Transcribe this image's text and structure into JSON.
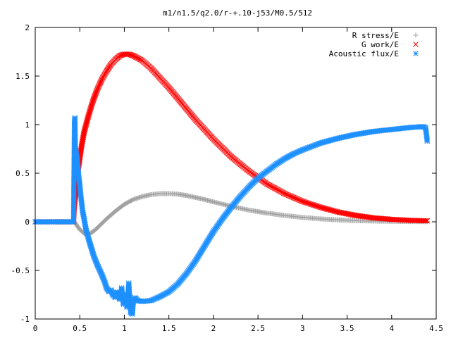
{
  "chart_data": {
    "type": "scatter",
    "title": "m1/n1.5/q2.0/r-+.10-j53/M0.5/512",
    "xlabel": "",
    "ylabel": "",
    "xlim": [
      0,
      4.5
    ],
    "ylim": [
      -1,
      2
    ],
    "xticks": [
      "0",
      "0.5",
      "1",
      "1.5",
      "2",
      "2.5",
      "3",
      "3.5",
      "4",
      "4.5"
    ],
    "yticks": [
      "-1",
      "-0.5",
      "0",
      "0.5",
      "1",
      "1.5",
      "2"
    ],
    "legend_position": "top-right",
    "grid": false,
    "series": [
      {
        "name": "R stress/E",
        "marker": "plus",
        "color": "#a0a0a0",
        "points": [
          [
            0.0,
            0.0
          ],
          [
            0.1,
            0.0
          ],
          [
            0.2,
            0.0
          ],
          [
            0.3,
            0.0
          ],
          [
            0.44,
            0.0
          ],
          [
            0.5,
            -0.08
          ],
          [
            0.55,
            -0.12
          ],
          [
            0.6,
            -0.13
          ],
          [
            0.65,
            -0.1
          ],
          [
            0.7,
            -0.06
          ],
          [
            0.8,
            0.03
          ],
          [
            0.9,
            0.11
          ],
          [
            1.0,
            0.18
          ],
          [
            1.1,
            0.23
          ],
          [
            1.2,
            0.26
          ],
          [
            1.3,
            0.28
          ],
          [
            1.4,
            0.29
          ],
          [
            1.5,
            0.29
          ],
          [
            1.6,
            0.285
          ],
          [
            1.7,
            0.27
          ],
          [
            1.8,
            0.25
          ],
          [
            1.9,
            0.23
          ],
          [
            2.0,
            0.205
          ],
          [
            2.2,
            0.16
          ],
          [
            2.4,
            0.12
          ],
          [
            2.6,
            0.09
          ],
          [
            2.8,
            0.065
          ],
          [
            3.0,
            0.045
          ],
          [
            3.2,
            0.03
          ],
          [
            3.4,
            0.02
          ],
          [
            3.6,
            0.012
          ],
          [
            3.8,
            0.008
          ],
          [
            4.0,
            0.005
          ],
          [
            4.2,
            0.003
          ],
          [
            4.4,
            0.002
          ]
        ]
      },
      {
        "name": "G work/E",
        "marker": "cross",
        "color": "#ff0000",
        "points": [
          [
            0.0,
            0.0
          ],
          [
            0.2,
            0.0
          ],
          [
            0.43,
            0.0
          ],
          [
            0.44,
            0.17
          ],
          [
            0.45,
            0.25
          ],
          [
            0.46,
            0.34
          ],
          [
            0.47,
            0.42
          ],
          [
            0.48,
            0.52
          ],
          [
            0.5,
            0.65
          ],
          [
            0.52,
            0.78
          ],
          [
            0.55,
            0.93
          ],
          [
            0.6,
            1.1
          ],
          [
            0.65,
            1.25
          ],
          [
            0.7,
            1.37
          ],
          [
            0.75,
            1.47
          ],
          [
            0.8,
            1.55
          ],
          [
            0.85,
            1.62
          ],
          [
            0.9,
            1.67
          ],
          [
            0.95,
            1.71
          ],
          [
            1.0,
            1.725
          ],
          [
            1.05,
            1.725
          ],
          [
            1.1,
            1.71
          ],
          [
            1.2,
            1.66
          ],
          [
            1.3,
            1.58
          ],
          [
            1.4,
            1.48
          ],
          [
            1.5,
            1.38
          ],
          [
            1.6,
            1.27
          ],
          [
            1.7,
            1.16
          ],
          [
            1.8,
            1.05
          ],
          [
            1.9,
            0.95
          ],
          [
            2.0,
            0.85
          ],
          [
            2.2,
            0.67
          ],
          [
            2.4,
            0.52
          ],
          [
            2.6,
            0.39
          ],
          [
            2.8,
            0.29
          ],
          [
            3.0,
            0.21
          ],
          [
            3.2,
            0.15
          ],
          [
            3.4,
            0.1
          ],
          [
            3.6,
            0.065
          ],
          [
            3.8,
            0.04
          ],
          [
            4.0,
            0.025
          ],
          [
            4.2,
            0.015
          ],
          [
            4.4,
            0.01
          ]
        ]
      },
      {
        "name": "Acoustic flux/E",
        "marker": "star",
        "color": "#1e90ff",
        "points": [
          [
            0.0,
            0.0
          ],
          [
            0.1,
            0.0
          ],
          [
            0.2,
            0.0
          ],
          [
            0.3,
            0.0
          ],
          [
            0.43,
            0.0
          ],
          [
            0.44,
            1.01
          ],
          [
            0.445,
            1.07
          ],
          [
            0.45,
            0.76
          ],
          [
            0.46,
            0.7
          ],
          [
            0.47,
            0.65
          ],
          [
            0.48,
            0.55
          ],
          [
            0.49,
            0.45
          ],
          [
            0.5,
            0.38
          ],
          [
            0.51,
            0.28
          ],
          [
            0.52,
            0.2
          ],
          [
            0.53,
            0.12
          ],
          [
            0.55,
            0.02
          ],
          [
            0.57,
            -0.08
          ],
          [
            0.6,
            -0.18
          ],
          [
            0.63,
            -0.27
          ],
          [
            0.66,
            -0.36
          ],
          [
            0.7,
            -0.45
          ],
          [
            0.75,
            -0.55
          ],
          [
            0.78,
            -0.62
          ],
          [
            0.8,
            -0.68
          ],
          [
            0.83,
            -0.72
          ],
          [
            0.85,
            -0.7
          ],
          [
            0.87,
            -0.75
          ],
          [
            0.9,
            -0.78
          ],
          [
            0.92,
            -0.72
          ],
          [
            0.95,
            -0.8
          ],
          [
            0.97,
            -0.68
          ],
          [
            0.99,
            -0.85
          ],
          [
            1.01,
            -0.75
          ],
          [
            1.03,
            -0.88
          ],
          [
            1.05,
            -0.63
          ],
          [
            1.07,
            -0.93
          ],
          [
            1.09,
            -0.95
          ],
          [
            1.1,
            -0.83
          ],
          [
            1.12,
            -0.78
          ],
          [
            1.15,
            -0.81
          ],
          [
            1.2,
            -0.82
          ],
          [
            1.3,
            -0.81
          ],
          [
            1.4,
            -0.77
          ],
          [
            1.5,
            -0.72
          ],
          [
            1.6,
            -0.64
          ],
          [
            1.7,
            -0.53
          ],
          [
            1.8,
            -0.4
          ],
          [
            1.9,
            -0.25
          ],
          [
            2.0,
            -0.1
          ],
          [
            2.1,
            0.03
          ],
          [
            2.2,
            0.15
          ],
          [
            2.3,
            0.26
          ],
          [
            2.4,
            0.36
          ],
          [
            2.5,
            0.45
          ],
          [
            2.6,
            0.52
          ],
          [
            2.7,
            0.59
          ],
          [
            2.8,
            0.65
          ],
          [
            2.9,
            0.7
          ],
          [
            3.0,
            0.74
          ],
          [
            3.2,
            0.81
          ],
          [
            3.4,
            0.86
          ],
          [
            3.6,
            0.9
          ],
          [
            3.8,
            0.93
          ],
          [
            4.0,
            0.95
          ],
          [
            4.2,
            0.97
          ],
          [
            4.35,
            0.98
          ],
          [
            4.38,
            0.97
          ],
          [
            4.4,
            0.83
          ]
        ]
      }
    ]
  }
}
